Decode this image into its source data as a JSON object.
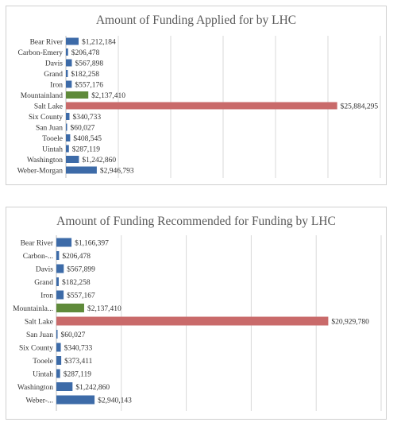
{
  "chart_data": [
    {
      "type": "bar",
      "orientation": "horizontal",
      "title": "Amount of Funding Applied for by LHC",
      "categories": [
        "Bear River",
        "Carbon-Emery",
        "Davis",
        "Grand",
        "Iron",
        "Mountainland",
        "Salt Lake",
        "Six County",
        "San Juan",
        "Tooele",
        "Uintah",
        "Washington",
        "Weber-Morgan"
      ],
      "values": [
        1212184,
        206478,
        567898,
        182258,
        557176,
        2137410,
        25884295,
        340733,
        60027,
        408545,
        287119,
        1242860,
        2946793
      ],
      "labels": [
        "$1,212,184",
        "$206,478",
        "$567,898",
        "$182,258",
        "$557,176",
        "$2,137,410",
        "$25,884,295",
        "$340,733",
        "$60,027",
        "$408,545",
        "$287,119",
        "$1,242,860",
        "$2,946,793"
      ],
      "bar_colors": [
        "#3d6ba8",
        "#3d6ba8",
        "#3d6ba8",
        "#3d6ba8",
        "#3d6ba8",
        "#5f8a3a",
        "#c96a6a",
        "#3d6ba8",
        "#3d6ba8",
        "#3d6ba8",
        "#3d6ba8",
        "#3d6ba8",
        "#3d6ba8"
      ],
      "xlim": [
        0,
        30000000
      ],
      "grid": true,
      "legend": "none"
    },
    {
      "type": "bar",
      "orientation": "horizontal",
      "title": "Amount of Funding Recommended for Funding by LHC",
      "categories": [
        "Bear River",
        "Carbon-...",
        "Davis",
        "Grand",
        "Iron",
        "Mountainla...",
        "Salt Lake",
        "San Juan",
        "Six County",
        "Tooele",
        "Uintah",
        "Washington",
        "Weber-..."
      ],
      "values": [
        1166397,
        206478,
        567899,
        182258,
        557167,
        2137410,
        20929780,
        60027,
        340733,
        373411,
        287119,
        1242860,
        2940143
      ],
      "labels": [
        "$1,166,397",
        "$206,478",
        "$567,899",
        "$182,258",
        "$557,167",
        "$2,137,410",
        "$20,929,780",
        "$60,027",
        "$340,733",
        "$373,411",
        "$287,119",
        "$1,242,860",
        "$2,940,143"
      ],
      "bar_colors": [
        "#3d6ba8",
        "#3d6ba8",
        "#3d6ba8",
        "#3d6ba8",
        "#3d6ba8",
        "#5f8a3a",
        "#c96a6a",
        "#3d6ba8",
        "#3d6ba8",
        "#3d6ba8",
        "#3d6ba8",
        "#3d6ba8",
        "#3d6ba8"
      ],
      "xlim": [
        0,
        25000000
      ],
      "grid": true,
      "legend": "none"
    }
  ]
}
